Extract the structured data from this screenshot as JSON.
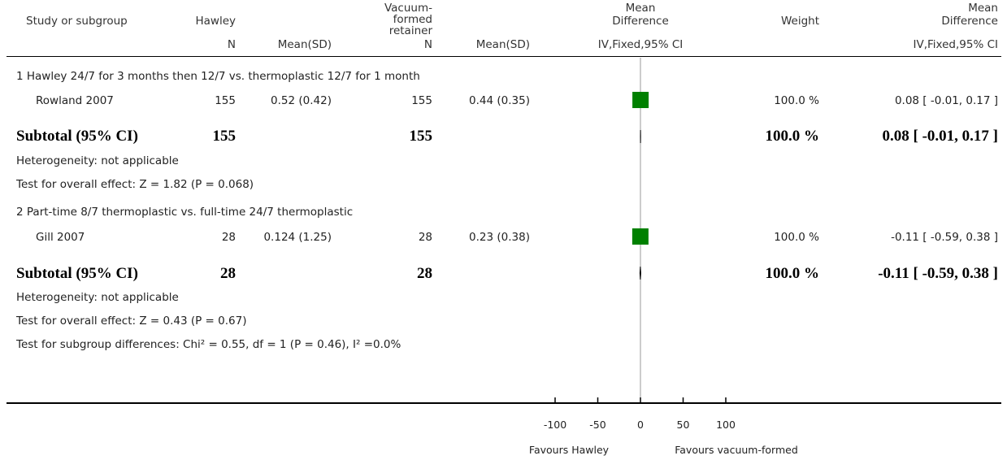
{
  "headers": {
    "study": "Study or subgroup",
    "group1": "Hawley",
    "group2": [
      "Vacuum-",
      "formed",
      "retainer"
    ],
    "md": [
      "Mean",
      "Difference"
    ],
    "weight": "Weight",
    "md2": [
      "Mean",
      "Difference"
    ],
    "n": "N",
    "mean_sd": "Mean(SD)",
    "method": "IV,Fixed,95% CI"
  },
  "subgroups": [
    {
      "title": "1 Hawley 24/7 for 3 months then 12/7 vs. thermoplastic 12/7 for 1 month",
      "study": {
        "name": "Rowland 2007",
        "n1": "155",
        "msd1": "0.52 (0.42)",
        "n2": "155",
        "msd2": "0.44 (0.35)",
        "weight": "100.0 %",
        "ci": "0.08 [ -0.01, 0.17 ]"
      },
      "subtotal": {
        "label": "Subtotal (95% CI)",
        "n1": "155",
        "n2": "155",
        "weight": "100.0 %",
        "ci": "0.08 [ -0.01, 0.17 ]"
      },
      "heterogeneity": "Heterogeneity: not applicable",
      "overall": "Test for overall effect: Z = 1.82 (P = 0.068)"
    },
    {
      "title": "2 Part-time 8/7 thermoplastic vs. full-time 24/7 thermoplastic",
      "study": {
        "name": "Gill 2007",
        "n1": "28",
        "msd1": "0.124 (1.25)",
        "n2": "28",
        "msd2": "0.23 (0.38)",
        "weight": "100.0 %",
        "ci": "-0.11 [ -0.59, 0.38 ]"
      },
      "subtotal": {
        "label": "Subtotal (95% CI)",
        "n1": "28",
        "n2": "28",
        "weight": "100.0 %",
        "ci": "-0.11 [ -0.59, 0.38 ]"
      },
      "heterogeneity": "Heterogeneity: not applicable",
      "overall": "Test for overall effect: Z = 0.43 (P = 0.67)"
    }
  ],
  "subgroup_diff": "Test for subgroup differences: Chi² = 0.55, df = 1 (P = 0.46), I² =0.0%",
  "axis": {
    "favours_left": "Favours Hawley",
    "favours_right": "Favours vacuum-formed"
  },
  "colors": {
    "square": "#008000",
    "line": "#999999"
  },
  "chart_data": {
    "type": "scatter",
    "x_ticks": [
      "-100",
      "-50",
      "0",
      "50",
      "100"
    ],
    "xlim": [
      -100,
      100
    ],
    "scale": "linear",
    "studies": [
      {
        "name": "Rowland 2007",
        "md": 0.08,
        "ci": [
          -0.01,
          0.17
        ],
        "weight": 100.0
      },
      {
        "name": "Gill 2007",
        "md": -0.11,
        "ci": [
          -0.59,
          0.38
        ],
        "weight": 100.0
      }
    ],
    "subtotals": [
      {
        "md": 0.08,
        "ci": [
          -0.01,
          0.17
        ]
      },
      {
        "md": -0.11,
        "ci": [
          -0.59,
          0.38
        ]
      }
    ]
  }
}
